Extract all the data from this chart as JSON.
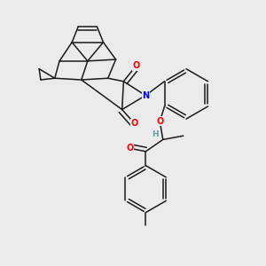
{
  "background_color": "#ebebeb",
  "bond_color": "#1a1a1a",
  "atom_colors": {
    "O": "#ff0000",
    "N": "#0000ff",
    "H": "#5f9ea0",
    "C": "#1a1a1a"
  },
  "figsize": [
    3.0,
    3.0
  ],
  "dpi": 100
}
